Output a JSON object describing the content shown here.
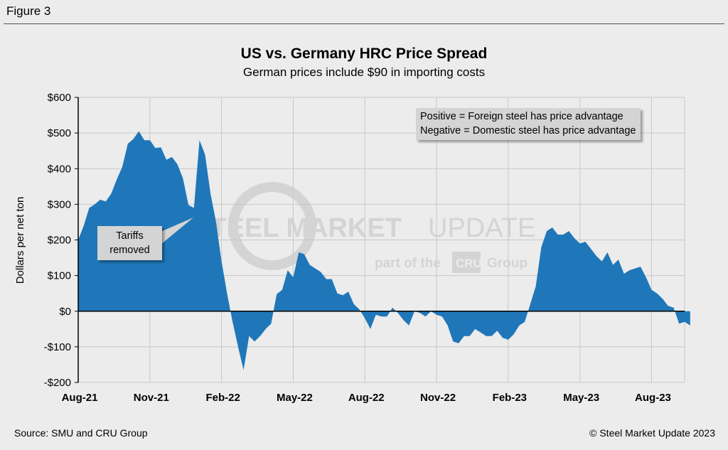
{
  "figure_label": "Figure 3",
  "source": "Source: SMU and CRU Group",
  "copyright": "© Steel Market Update 2023",
  "watermark": {
    "name_bold": "STEEL MARKET",
    "name_light": "UPDATE",
    "tag_prefix": "part of the",
    "tag_logo": "CRU",
    "tag_suffix": "Group"
  },
  "legend": {
    "line1": "Positive = Foreign steel has price advantage",
    "line2": "Negative = Domestic steel has price advantage"
  },
  "callout": {
    "line1": "Tariffs",
    "line2": "removed"
  },
  "colors": {
    "fill": "#1f77b9",
    "grid": "#c8c8c8",
    "axis": "#000000"
  },
  "chart_data": {
    "type": "area",
    "title": "US vs. Germany HRC Price Spread",
    "subtitle": "German prices include $90 in importing costs",
    "xlabel": "",
    "ylabel": "Dollars per net ton",
    "ylim": [
      -200,
      600
    ],
    "y_ticks": [
      600,
      500,
      400,
      300,
      200,
      100,
      0,
      -100,
      -200
    ],
    "y_tick_labels": [
      "$600",
      "$500",
      "$400",
      "$300",
      "$200",
      "$100",
      "$0",
      "-$100",
      "-$200"
    ],
    "x_tick_labels": [
      "Aug-21",
      "Nov-21",
      "Feb-22",
      "May-22",
      "Aug-22",
      "Nov-22",
      "Feb-23",
      "May-23",
      "Aug-23"
    ],
    "x_tick_positions": [
      0,
      13,
      26,
      39,
      52,
      65,
      78,
      91,
      104
    ],
    "x_max": 110,
    "series": [
      {
        "name": "US vs. Germany HRC Price Spread",
        "values": [
          200,
          240,
          290,
          300,
          313,
          308,
          330,
          370,
          405,
          470,
          483,
          505,
          480,
          480,
          458,
          460,
          425,
          433,
          412,
          373,
          298,
          290,
          480,
          440,
          330,
          250,
          140,
          50,
          -30,
          -100,
          -165,
          -70,
          -85,
          -70,
          -50,
          -35,
          48,
          60,
          115,
          95,
          165,
          160,
          130,
          120,
          110,
          90,
          90,
          50,
          45,
          55,
          20,
          5,
          -20,
          -50,
          -10,
          -15,
          -15,
          10,
          -5,
          -25,
          -40,
          0,
          -5,
          -15,
          0,
          -10,
          -15,
          -40,
          -85,
          -90,
          -70,
          -70,
          -50,
          -60,
          -70,
          -70,
          -55,
          -75,
          -80,
          -65,
          -40,
          -30,
          20,
          70,
          180,
          225,
          235,
          215,
          215,
          225,
          205,
          190,
          195,
          175,
          155,
          140,
          165,
          130,
          145,
          105,
          115,
          120,
          125,
          95,
          60,
          50,
          35,
          15,
          10,
          -35,
          -30,
          -40
        ]
      }
    ],
    "annotations": [
      {
        "text": "Tariffs removed",
        "x": 21,
        "y": 260
      }
    ]
  }
}
